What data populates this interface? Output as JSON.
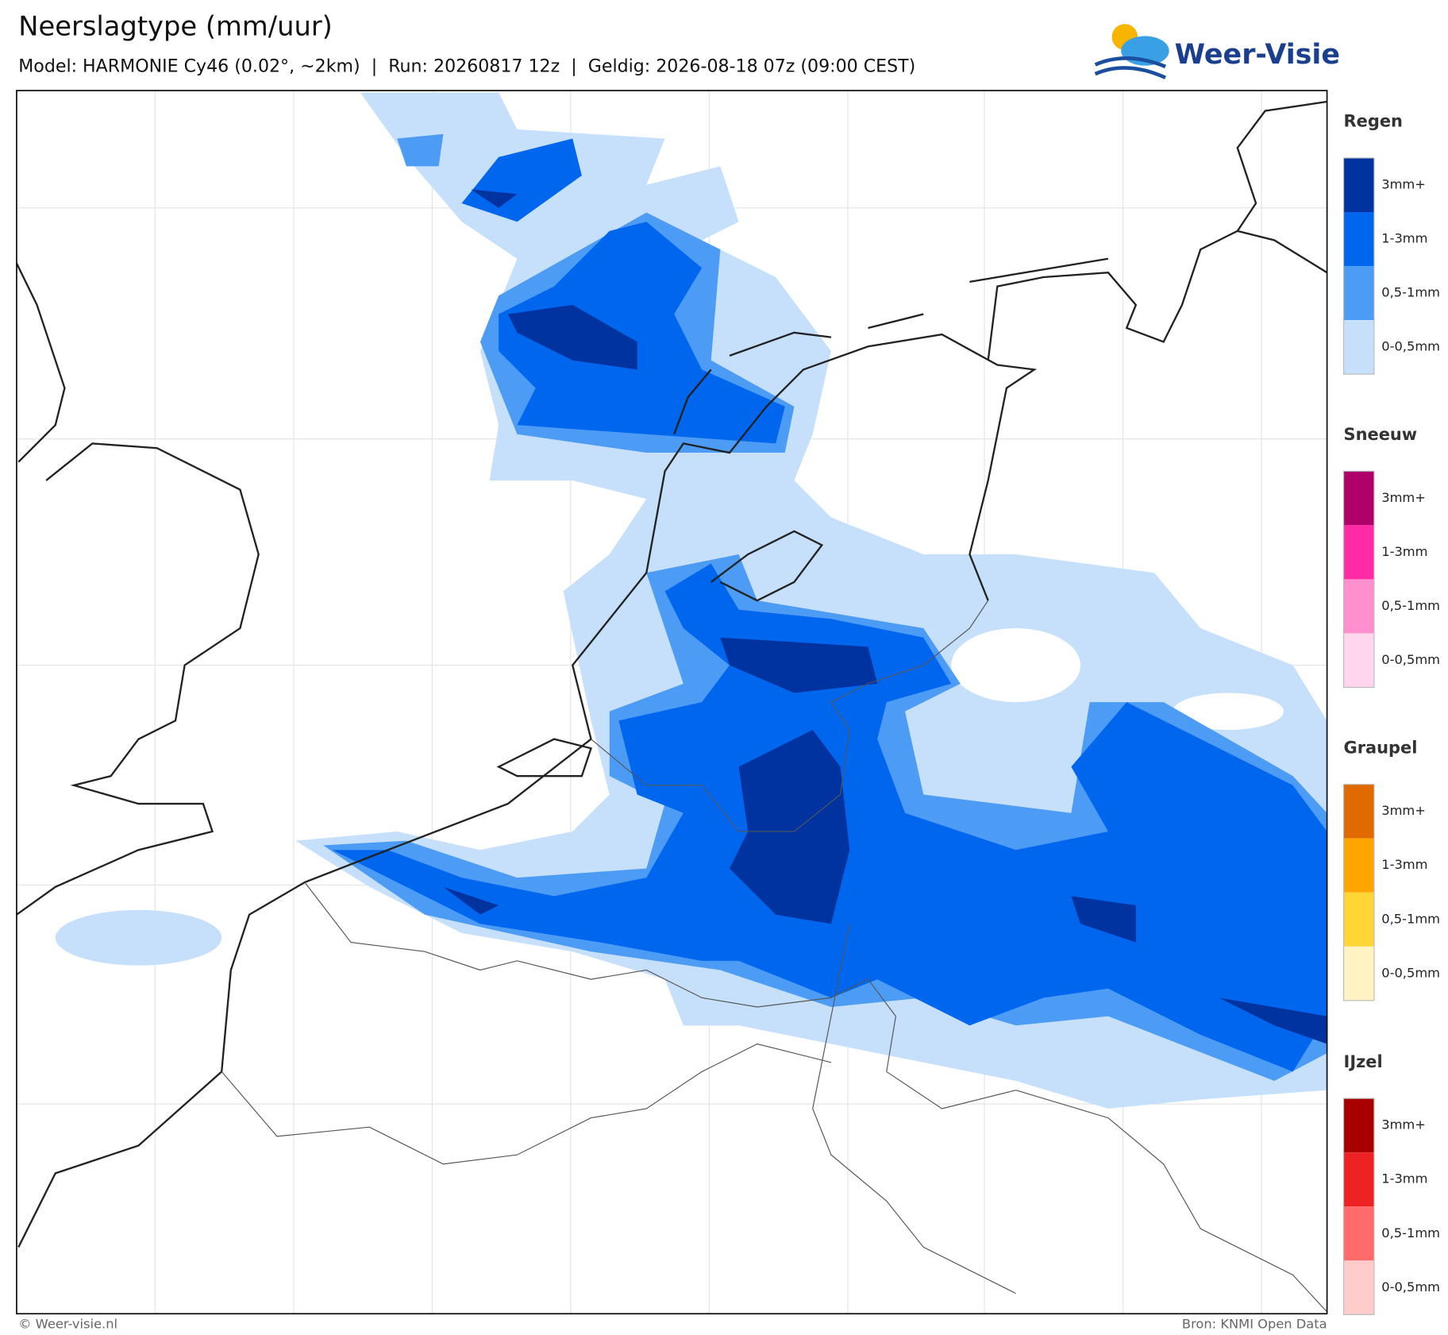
{
  "header": {
    "title": "Neerslagtype (mm/uur)",
    "subtitle": "Model: HARMONIE Cy46 (0.02°, ~2km)  |  Run: 20260817 12z  |  Geldig: 2026-08-18 07z (09:00 CEST)",
    "logo": "Weer-Visie"
  },
  "legend": [
    {
      "title": "Regen",
      "items": [
        "3mm+",
        "1-3mm",
        "0,5-1mm",
        "0-0,5mm"
      ],
      "colors": [
        "#0033a0",
        "#0066ee",
        "#4c9cf5",
        "#c6e0fb"
      ]
    },
    {
      "title": "Sneeuw",
      "items": [
        "3mm+",
        "1-3mm",
        "0,5-1mm",
        "0-0,5mm"
      ],
      "colors": [
        "#b0006a",
        "#ff2aa6",
        "#ff8fcf",
        "#ffd6ee"
      ]
    },
    {
      "title": "Graupel",
      "items": [
        "3mm+",
        "1-3mm",
        "0,5-1mm",
        "0-0,5mm"
      ],
      "colors": [
        "#e06a00",
        "#ffa500",
        "#ffd633",
        "#fff3c4"
      ]
    },
    {
      "title": "IJzel",
      "items": [
        "3mm+",
        "1-3mm",
        "0,5-1mm",
        "0-0,5mm"
      ],
      "colors": [
        "#a80000",
        "#ee2222",
        "#ff6b6b",
        "#ffcccc"
      ]
    }
  ],
  "footer": {
    "left": "© Weer-visie.nl",
    "right": "Bron: KNMI Open Data"
  }
}
